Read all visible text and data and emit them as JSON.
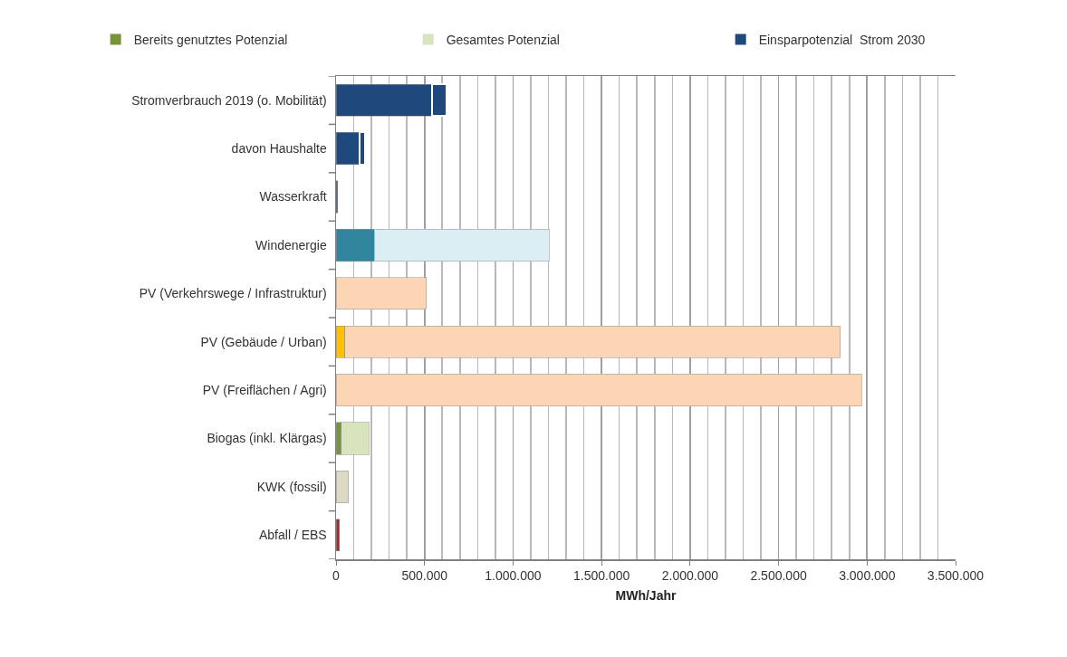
{
  "chart_data": {
    "type": "bar",
    "orientation": "horizontal",
    "stacked": true,
    "categories": [
      "Stromverbrauch 2019 (o. Mobilität)",
      "davon Haushalte",
      "Wasserkraft",
      "Windenergie",
      "PV (Verkehrswege / Infrastruktur)",
      "PV (Gebäude / Urban)",
      "PV (Freiflächen / Agri)",
      "Biogas (inkl. Klärgas)",
      "KWK (fossil)",
      "Abfall / EBS"
    ],
    "series": [
      {
        "name": "Bereits genutztes Potenzial",
        "color": "#77933c",
        "colors": [
          "#1f497d",
          "#1f497d",
          "#1f497d",
          "#31859c",
          null,
          "#ffc000",
          null,
          "#77933c",
          null,
          "#9b2d2a"
        ],
        "values": [
          540000,
          135000,
          10000,
          215000,
          null,
          50000,
          null,
          30000,
          null,
          20000
        ]
      },
      {
        "name": "Gesamtes Potenzial",
        "color": "#d7e4bd",
        "colors": [
          null,
          null,
          null,
          "#dbeef4",
          "#fcd5b5",
          "#fcd5b5",
          "#fcd5b5",
          "#d7e4bd",
          "#ddd9c3",
          null
        ],
        "values": [
          null,
          null,
          null,
          990000,
          510000,
          2800000,
          2970000,
          155000,
          70000,
          null
        ]
      },
      {
        "name": "Einsparpotenzial  Strom 2030",
        "color": "#1f497d",
        "values": [
          85000,
          30000,
          null,
          null,
          null,
          null,
          null,
          null,
          null,
          null
        ]
      }
    ],
    "xlabel": "MWh/Jahr",
    "xlim": [
      0,
      3500000
    ],
    "xticks": [
      0,
      {
        "value": 100000,
        "label": null
      },
      {
        "value": 200000,
        "label": null
      },
      {
        "value": 300000,
        "label": null
      },
      {
        "value": 400000,
        "label": null
      },
      {
        "value": 500000,
        "label": "500.000"
      },
      {
        "value": 600000,
        "label": null
      },
      {
        "value": 700000,
        "label": null
      },
      {
        "value": 800000,
        "label": null
      },
      {
        "value": 900000,
        "label": null
      },
      {
        "value": 1000000,
        "label": "1.000.000"
      },
      {
        "value": 1100000,
        "label": null
      },
      {
        "value": 1200000,
        "label": null
      },
      {
        "value": 1300000,
        "label": null
      },
      {
        "value": 1400000,
        "label": null
      },
      {
        "value": 1500000,
        "label": "1.500.000"
      },
      {
        "value": 1600000,
        "label": null
      },
      {
        "value": 1700000,
        "label": null
      },
      {
        "value": 1800000,
        "label": null
      },
      {
        "value": 1900000,
        "label": null
      },
      {
        "value": 2000000,
        "label": "2.000.000"
      },
      {
        "value": 2100000,
        "label": null
      },
      {
        "value": 2200000,
        "label": null
      },
      {
        "value": 2300000,
        "label": null
      },
      {
        "value": 2400000,
        "label": null
      },
      {
        "value": 2500000,
        "label": "2.500.000"
      },
      {
        "value": 2600000,
        "label": null
      },
      {
        "value": 2700000,
        "label": null
      },
      {
        "value": 2800000,
        "label": null
      },
      {
        "value": 2900000,
        "label": null
      },
      {
        "value": 3000000,
        "label": "3.000.000"
      },
      {
        "value": 3100000,
        "label": null
      },
      {
        "value": 3200000,
        "label": null
      },
      {
        "value": 3300000,
        "label": null
      },
      {
        "value": 3400000,
        "label": null
      },
      {
        "value": 3500000,
        "label": "3.500.000"
      }
    ],
    "grid": "x",
    "legend": "top"
  }
}
